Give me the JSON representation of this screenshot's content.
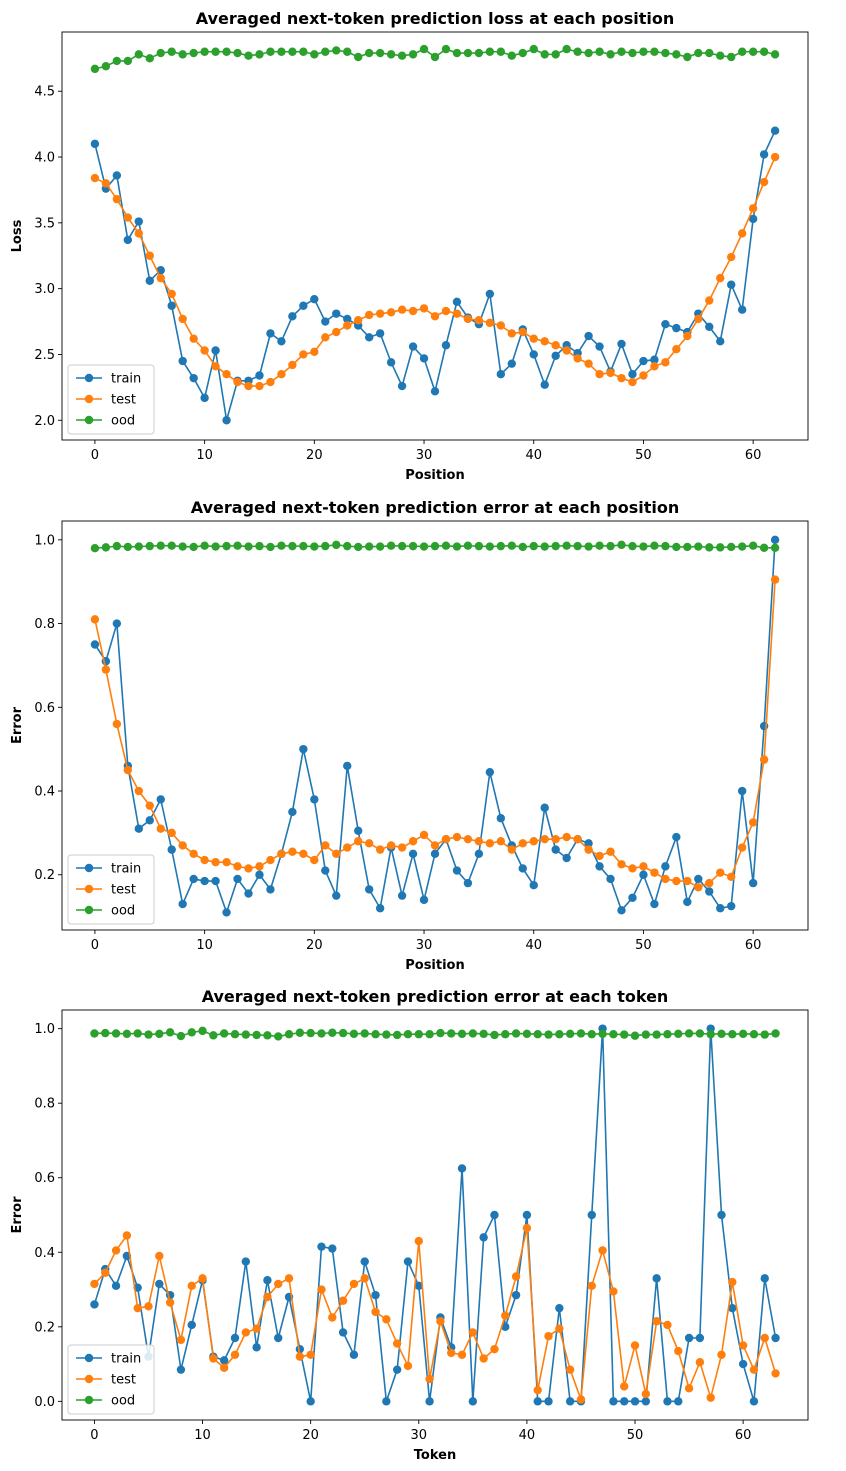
{
  "colors": {
    "train": "#1f77b4",
    "test": "#ff7f0e",
    "ood": "#2ca02c"
  },
  "chart_data": [
    {
      "type": "line",
      "title": "Averaged next-token prediction loss at each position",
      "xlabel": "Position",
      "ylabel": "Loss",
      "xlim": [
        -3,
        65
      ],
      "ylim": [
        1.85,
        4.95
      ],
      "xticks": [
        0,
        10,
        20,
        30,
        40,
        50,
        60
      ],
      "yticks": [
        2.0,
        2.5,
        3.0,
        3.5,
        4.0,
        4.5
      ],
      "ytick_labels": [
        "2.0",
        "2.5",
        "3.0",
        "3.5",
        "4.0",
        "4.5"
      ],
      "legend": "lower-left",
      "series": [
        {
          "name": "train",
          "color": "#1f77b4",
          "x0": 0,
          "values": [
            4.1,
            3.76,
            3.86,
            3.37,
            3.51,
            3.06,
            3.14,
            2.87,
            2.45,
            2.32,
            2.17,
            2.53,
            2.0,
            2.3,
            2.3,
            2.34,
            2.66,
            2.6,
            2.79,
            2.87,
            2.92,
            2.75,
            2.81,
            2.77,
            2.72,
            2.63,
            2.66,
            2.44,
            2.26,
            2.56,
            2.47,
            2.22,
            2.57,
            2.9,
            2.78,
            2.73,
            2.96,
            2.35,
            2.43,
            2.69,
            2.5,
            2.27,
            2.49,
            2.57,
            2.51,
            2.64,
            2.56,
            2.37,
            2.58,
            2.35,
            2.45,
            2.46,
            2.73,
            2.7,
            2.67,
            2.81,
            2.71,
            2.6,
            3.03,
            2.84,
            3.53,
            4.02,
            4.2
          ]
        },
        {
          "name": "test",
          "color": "#ff7f0e",
          "x0": 0,
          "values": [
            3.84,
            3.8,
            3.68,
            3.54,
            3.42,
            3.25,
            3.08,
            2.96,
            2.77,
            2.62,
            2.53,
            2.41,
            2.35,
            2.29,
            2.26,
            2.26,
            2.29,
            2.35,
            2.42,
            2.5,
            2.52,
            2.63,
            2.67,
            2.72,
            2.76,
            2.8,
            2.81,
            2.82,
            2.84,
            2.83,
            2.85,
            2.79,
            2.83,
            2.81,
            2.77,
            2.76,
            2.74,
            2.72,
            2.66,
            2.67,
            2.62,
            2.6,
            2.57,
            2.53,
            2.47,
            2.43,
            2.35,
            2.36,
            2.32,
            2.29,
            2.34,
            2.41,
            2.44,
            2.54,
            2.64,
            2.77,
            2.91,
            3.08,
            3.24,
            3.42,
            3.61,
            3.81,
            4.0
          ]
        },
        {
          "name": "ood",
          "color": "#2ca02c",
          "x0": 0,
          "values": [
            4.67,
            4.69,
            4.73,
            4.73,
            4.78,
            4.75,
            4.79,
            4.8,
            4.78,
            4.79,
            4.8,
            4.8,
            4.8,
            4.79,
            4.77,
            4.78,
            4.8,
            4.8,
            4.8,
            4.8,
            4.78,
            4.8,
            4.81,
            4.8,
            4.76,
            4.79,
            4.79,
            4.78,
            4.77,
            4.78,
            4.82,
            4.76,
            4.82,
            4.79,
            4.79,
            4.79,
            4.8,
            4.8,
            4.77,
            4.79,
            4.82,
            4.78,
            4.78,
            4.82,
            4.8,
            4.79,
            4.8,
            4.78,
            4.8,
            4.79,
            4.8,
            4.8,
            4.79,
            4.78,
            4.76,
            4.79,
            4.79,
            4.77,
            4.76,
            4.8,
            4.8,
            4.8,
            4.78
          ]
        }
      ]
    },
    {
      "type": "line",
      "title": "Averaged next-token prediction error at each position",
      "xlabel": "Position",
      "ylabel": "Error",
      "xlim": [
        -3,
        65
      ],
      "ylim": [
        0.068,
        1.045
      ],
      "xticks": [
        0,
        10,
        20,
        30,
        40,
        50,
        60
      ],
      "yticks": [
        0.2,
        0.4,
        0.6,
        0.8,
        1.0
      ],
      "ytick_labels": [
        "0.2",
        "0.4",
        "0.6",
        "0.8",
        "1.0"
      ],
      "legend": "lower-left",
      "series": [
        {
          "name": "train",
          "color": "#1f77b4",
          "x0": 0,
          "values": [
            0.75,
            0.71,
            0.8,
            0.46,
            0.31,
            0.33,
            0.38,
            0.26,
            0.13,
            0.19,
            0.185,
            0.185,
            0.11,
            0.19,
            0.155,
            0.2,
            0.165,
            0.25,
            0.35,
            0.5,
            0.38,
            0.21,
            0.15,
            0.46,
            0.305,
            0.165,
            0.12,
            0.265,
            0.15,
            0.25,
            0.14,
            0.25,
            0.285,
            0.21,
            0.18,
            0.25,
            0.445,
            0.335,
            0.27,
            0.215,
            0.175,
            0.36,
            0.26,
            0.24,
            0.285,
            0.275,
            0.22,
            0.19,
            0.115,
            0.145,
            0.2,
            0.13,
            0.22,
            0.29,
            0.135,
            0.19,
            0.16,
            0.12,
            0.125,
            0.4,
            0.18,
            0.555,
            1.0
          ]
        },
        {
          "name": "test",
          "color": "#ff7f0e",
          "x0": 0,
          "values": [
            0.81,
            0.69,
            0.56,
            0.45,
            0.4,
            0.365,
            0.31,
            0.3,
            0.27,
            0.25,
            0.235,
            0.23,
            0.23,
            0.22,
            0.215,
            0.22,
            0.235,
            0.25,
            0.255,
            0.25,
            0.235,
            0.27,
            0.25,
            0.265,
            0.28,
            0.275,
            0.26,
            0.27,
            0.265,
            0.28,
            0.295,
            0.27,
            0.285,
            0.29,
            0.285,
            0.28,
            0.275,
            0.28,
            0.26,
            0.275,
            0.28,
            0.285,
            0.285,
            0.29,
            0.285,
            0.26,
            0.245,
            0.255,
            0.225,
            0.215,
            0.22,
            0.205,
            0.19,
            0.185,
            0.185,
            0.17,
            0.18,
            0.205,
            0.195,
            0.265,
            0.325,
            0.475,
            0.905
          ]
        },
        {
          "name": "ood",
          "color": "#2ca02c",
          "x0": 0,
          "values": [
            0.98,
            0.982,
            0.985,
            0.983,
            0.984,
            0.985,
            0.986,
            0.986,
            0.984,
            0.983,
            0.986,
            0.984,
            0.985,
            0.986,
            0.984,
            0.985,
            0.983,
            0.986,
            0.985,
            0.985,
            0.984,
            0.985,
            0.988,
            0.985,
            0.983,
            0.984,
            0.984,
            0.986,
            0.985,
            0.985,
            0.984,
            0.985,
            0.986,
            0.984,
            0.986,
            0.985,
            0.984,
            0.985,
            0.986,
            0.983,
            0.985,
            0.984,
            0.985,
            0.986,
            0.985,
            0.984,
            0.986,
            0.985,
            0.988,
            0.985,
            0.984,
            0.986,
            0.985,
            0.983,
            0.983,
            0.984,
            0.982,
            0.982,
            0.983,
            0.984,
            0.986,
            0.981,
            0.981
          ]
        }
      ]
    },
    {
      "type": "line",
      "title": "Averaged next-token prediction error at each token",
      "xlabel": "Token",
      "ylabel": "Error",
      "xlim": [
        -3,
        66
      ],
      "ylim": [
        -0.05,
        1.05
      ],
      "xticks": [
        0,
        10,
        20,
        30,
        40,
        50,
        60
      ],
      "yticks": [
        0.0,
        0.2,
        0.4,
        0.6,
        0.8,
        1.0
      ],
      "ytick_labels": [
        "0.0",
        "0.2",
        "0.4",
        "0.6",
        "0.8",
        "1.0"
      ],
      "legend": "lower-left",
      "series": [
        {
          "name": "train",
          "color": "#1f77b4",
          "x0": 0,
          "values": [
            0.26,
            0.355,
            0.31,
            0.39,
            0.305,
            0.12,
            0.315,
            0.285,
            0.085,
            0.205,
            0.325,
            0.12,
            0.11,
            0.17,
            0.375,
            0.145,
            0.325,
            0.17,
            0.28,
            0.14,
            0.0,
            0.415,
            0.41,
            0.185,
            0.125,
            0.375,
            0.285,
            0.0,
            0.085,
            0.375,
            0.31,
            0.0,
            0.225,
            0.145,
            0.625,
            0.0,
            0.44,
            0.5,
            0.2,
            0.285,
            0.5,
            0.0,
            0.0,
            0.25,
            0.0,
            0.0,
            0.5,
            1.0,
            0.0,
            0.0,
            0.0,
            0.0,
            0.33,
            0.0,
            0.0,
            0.17,
            0.17,
            1.0,
            0.5,
            0.25,
            0.1,
            0.0,
            0.33,
            0.17
          ]
        },
        {
          "name": "test",
          "color": "#ff7f0e",
          "x0": 0,
          "values": [
            0.315,
            0.345,
            0.405,
            0.445,
            0.25,
            0.255,
            0.39,
            0.265,
            0.165,
            0.31,
            0.33,
            0.115,
            0.09,
            0.125,
            0.185,
            0.195,
            0.28,
            0.315,
            0.33,
            0.12,
            0.125,
            0.3,
            0.225,
            0.27,
            0.315,
            0.33,
            0.24,
            0.22,
            0.155,
            0.095,
            0.43,
            0.06,
            0.215,
            0.13,
            0.125,
            0.185,
            0.115,
            0.14,
            0.23,
            0.335,
            0.465,
            0.03,
            0.175,
            0.195,
            0.085,
            0.005,
            0.31,
            0.405,
            0.295,
            0.04,
            0.15,
            0.02,
            0.215,
            0.205,
            0.135,
            0.035,
            0.105,
            0.01,
            0.125,
            0.32,
            0.15,
            0.085,
            0.17,
            0.075
          ]
        },
        {
          "name": "ood",
          "color": "#2ca02c",
          "x0": 0,
          "values": [
            0.987,
            0.988,
            0.987,
            0.986,
            0.987,
            0.984,
            0.986,
            0.99,
            0.98,
            0.99,
            0.994,
            0.982,
            0.987,
            0.985,
            0.984,
            0.983,
            0.982,
            0.979,
            0.985,
            0.989,
            0.988,
            0.987,
            0.989,
            0.988,
            0.986,
            0.987,
            0.985,
            0.984,
            0.983,
            0.985,
            0.985,
            0.985,
            0.988,
            0.987,
            0.986,
            0.987,
            0.986,
            0.983,
            0.985,
            0.987,
            0.986,
            0.985,
            0.984,
            0.985,
            0.986,
            0.987,
            0.985,
            0.986,
            0.985,
            0.984,
            0.981,
            0.984,
            0.984,
            0.985,
            0.986,
            0.987,
            0.987,
            0.985,
            0.986,
            0.985,
            0.986,
            0.985,
            0.984,
            0.987
          ]
        }
      ]
    }
  ]
}
